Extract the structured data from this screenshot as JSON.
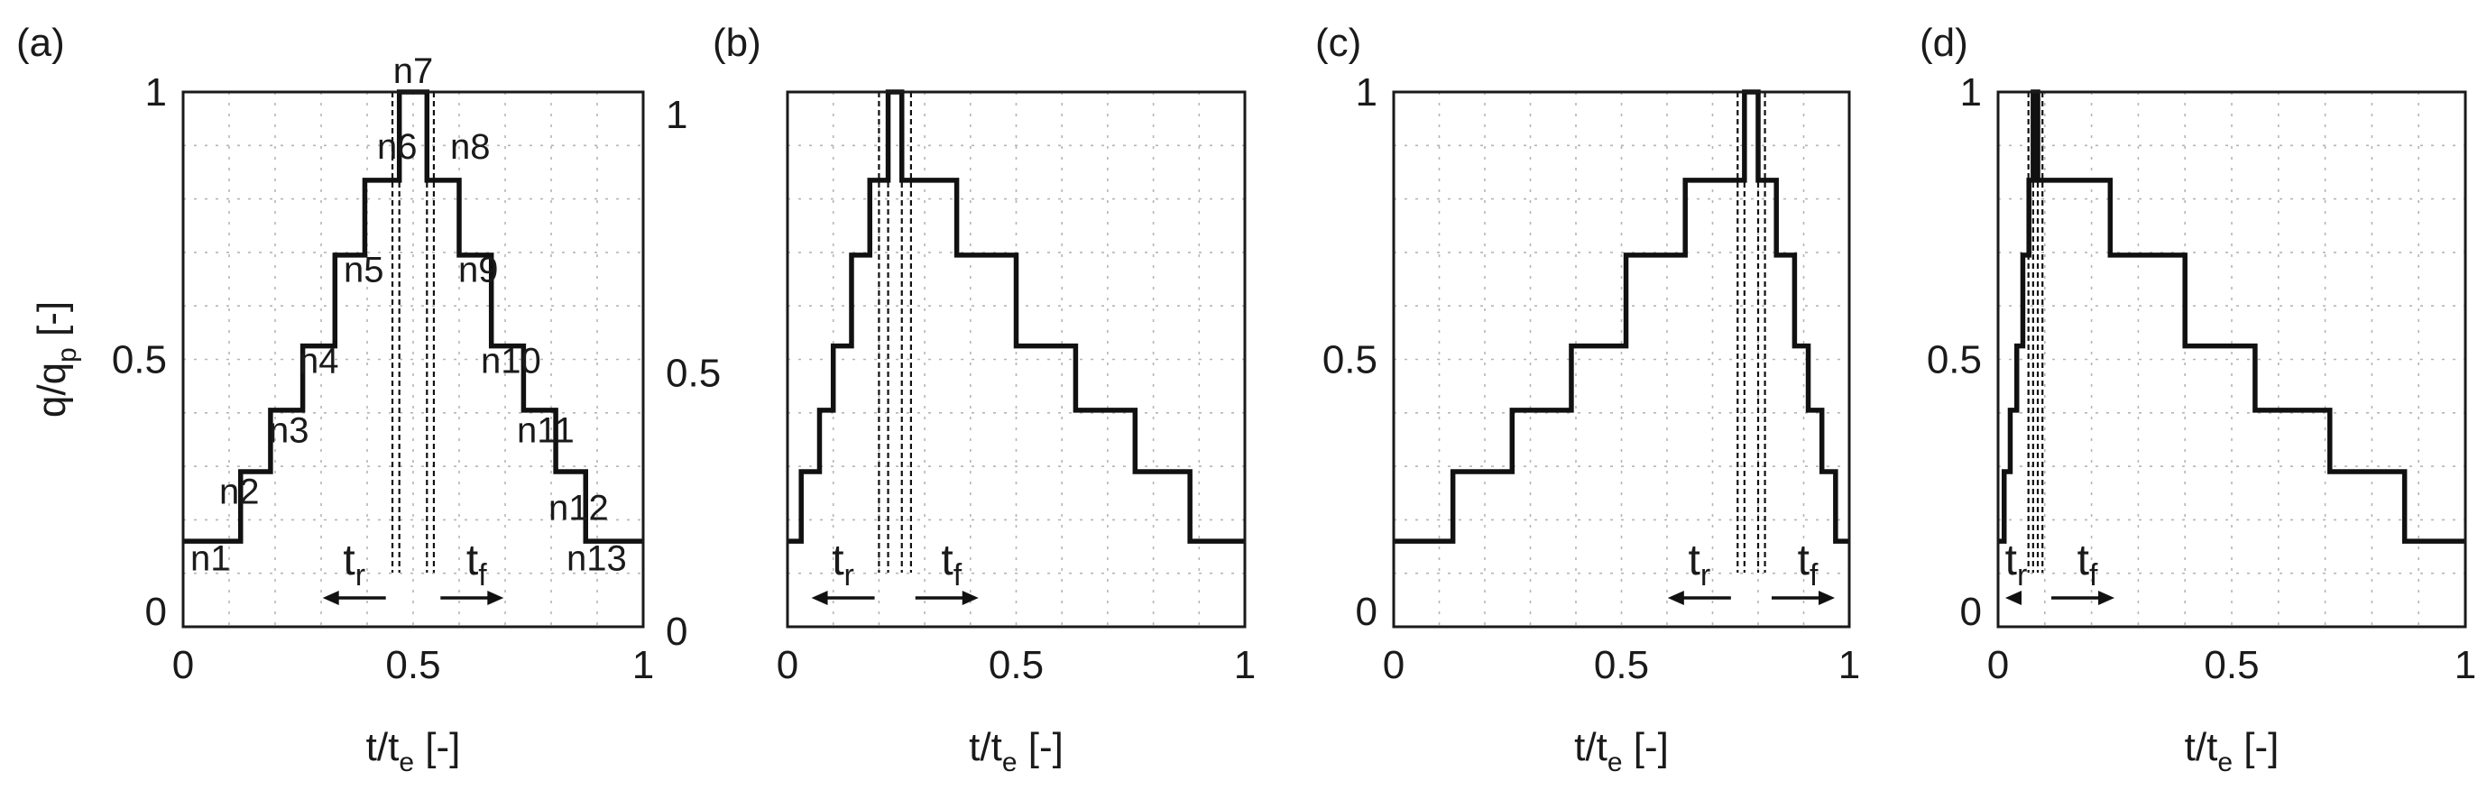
{
  "figure": {
    "ylabel_main": "q/q",
    "ylabel_sub": "p",
    "ylabel_tail": " [-]",
    "xlabel_main": "t/t",
    "xlabel_sub": "e",
    "xlabel_tail": " [-]",
    "rise_label_main": "t",
    "rise_label_sub": "r",
    "fall_label_main": "t",
    "fall_label_sub": "f"
  },
  "chart_data": [
    {
      "type": "line",
      "panel_label": "(a)",
      "xlim": [
        0,
        1
      ],
      "ylim": [
        0,
        1
      ],
      "x_ticks": [
        "0",
        "0.5",
        "1"
      ],
      "y_ticks": [
        "0",
        "0.5",
        "1"
      ],
      "grid": true,
      "peak_interval": [
        0.47,
        0.53
      ],
      "dashed_lines_x": [
        0.455,
        0.47,
        0.53,
        0.545
      ],
      "step_edges": [
        0,
        0.055,
        0.125,
        0.19,
        0.26,
        0.33,
        0.395,
        0.47,
        0.53,
        0.6,
        0.67,
        0.74,
        0.81,
        0.875,
        0.945,
        1
      ],
      "step_values": [
        0.16,
        0.16,
        0.29,
        0.405,
        0.525,
        0.695,
        0.835,
        1.0,
        0.835,
        0.695,
        0.525,
        0.405,
        0.29,
        0.16,
        0.16
      ],
      "node_labels": [
        "n1",
        "n2",
        "n3",
        "n4",
        "n5",
        "n6",
        "n7",
        "n8",
        "n9",
        "n10",
        "n11",
        "n12",
        "n13"
      ]
    },
    {
      "type": "line",
      "panel_label": "(b)",
      "xlim": [
        0,
        1
      ],
      "ylim": [
        0,
        1
      ],
      "x_ticks": [
        "0",
        "0.5",
        "1"
      ],
      "y_ticks": [
        "0",
        "0.5",
        "1"
      ],
      "grid": true,
      "peak_interval": [
        0.22,
        0.25
      ],
      "dashed_lines_x": [
        0.2,
        0.22,
        0.25,
        0.27
      ],
      "step_edges": [
        0,
        0.03,
        0.07,
        0.1,
        0.14,
        0.18,
        0.22,
        0.25,
        0.37,
        0.5,
        0.63,
        0.76,
        0.88,
        1
      ],
      "step_values": [
        0.16,
        0.29,
        0.405,
        0.525,
        0.695,
        0.835,
        1.0,
        0.835,
        0.695,
        0.525,
        0.405,
        0.29,
        0.16
      ]
    },
    {
      "type": "line",
      "panel_label": "(c)",
      "xlim": [
        0,
        1
      ],
      "ylim": [
        0,
        1
      ],
      "x_ticks": [
        "0",
        "0.5",
        "1"
      ],
      "y_ticks": [
        "0",
        "0.5",
        "1"
      ],
      "grid": true,
      "peak_interval": [
        0.77,
        0.8
      ],
      "dashed_lines_x": [
        0.755,
        0.77,
        0.8,
        0.815
      ],
      "step_edges": [
        0,
        0.13,
        0.26,
        0.39,
        0.51,
        0.64,
        0.77,
        0.8,
        0.84,
        0.88,
        0.91,
        0.94,
        0.97,
        1
      ],
      "step_values": [
        0.16,
        0.29,
        0.405,
        0.525,
        0.695,
        0.835,
        1.0,
        0.835,
        0.695,
        0.525,
        0.405,
        0.29,
        0.16
      ]
    },
    {
      "type": "line",
      "panel_label": "(d)",
      "xlim": [
        0,
        1
      ],
      "ylim": [
        0,
        1
      ],
      "x_ticks": [
        "0",
        "0.5",
        "1"
      ],
      "y_ticks": [
        "0",
        "0.5",
        "1"
      ],
      "grid": true,
      "peak_interval": [
        0.075,
        0.085
      ],
      "dashed_lines_x": [
        0.065,
        0.075,
        0.085,
        0.095
      ],
      "step_edges": [
        0,
        0.013,
        0.026,
        0.04,
        0.053,
        0.066,
        0.075,
        0.085,
        0.24,
        0.4,
        0.55,
        0.71,
        0.87,
        1
      ],
      "step_values": [
        0.16,
        0.29,
        0.405,
        0.525,
        0.695,
        0.835,
        1.0,
        0.835,
        0.695,
        0.525,
        0.405,
        0.29,
        0.16
      ]
    }
  ]
}
